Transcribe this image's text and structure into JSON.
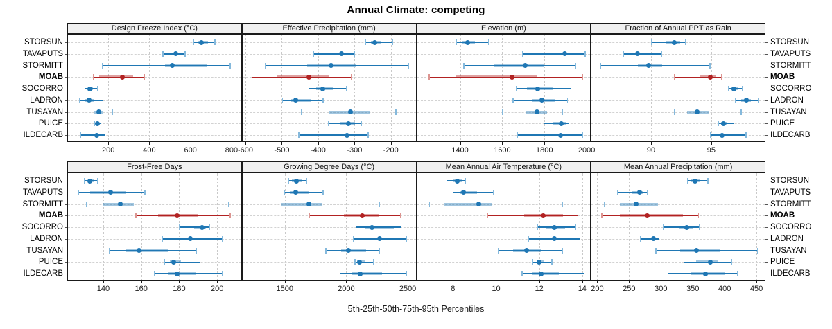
{
  "title": "Annual Climate: competing",
  "axis_caption": "5th-25th-50th-75th-95th Percentiles",
  "sites": [
    "STORSUN",
    "TAVAPUTS",
    "STORMITT",
    "MOAB",
    "SOCORRO",
    "LADRON",
    "TUSAYAN",
    "PUICE",
    "ILDECARB"
  ],
  "highlight_site": "MOAB",
  "colors": {
    "series": "#1f77b4",
    "series_cap": "#85b9dc",
    "highlight": "#b22222",
    "highlight_cap": "#dc9490",
    "strip_bg": "#f0f0f0",
    "panel_border": "#1a1a1a",
    "grid": "#c9c9c9"
  },
  "chart_data": [
    {
      "type": "dotplot-interval",
      "title": "Design Freeze Index (°C)",
      "percentiles": [
        5,
        25,
        50,
        75,
        95
      ],
      "xlim": [
        0,
        850
      ],
      "ticks": [
        200,
        400,
        600,
        800
      ],
      "series": {
        "STORSUN": [
          615,
          635,
          655,
          685,
          720
        ],
        "TAVAPUTS": [
          465,
          505,
          530,
          550,
          575
        ],
        "STORMITT": [
          170,
          475,
          510,
          680,
          795
        ],
        "MOAB": [
          125,
          155,
          270,
          320,
          375
        ],
        "SOCORRO": [
          85,
          100,
          110,
          125,
          150
        ],
        "LADRON": [
          60,
          85,
          105,
          130,
          175
        ],
        "TUSAYAN": [
          105,
          130,
          155,
          175,
          220
        ],
        "PUICE": [
          130,
          140,
          148,
          156,
          165
        ],
        "ILDECARB": [
          65,
          110,
          143,
          160,
          185
        ]
      }
    },
    {
      "type": "dotplot-interval",
      "title": "Effective Precipitation (mm)",
      "percentiles": [
        5,
        25,
        50,
        75,
        95
      ],
      "xlim": [
        -610,
        -130
      ],
      "ticks": [
        -600,
        -500,
        -400,
        -300,
        -200
      ],
      "series": {
        "STORSUN": [
          -270,
          -255,
          -244,
          -229,
          -195
        ],
        "TAVAPUTS": [
          -413,
          -371,
          -336,
          -318,
          -300
        ],
        "STORMITT": [
          -545,
          -430,
          -364,
          -295,
          -151
        ],
        "MOAB": [
          -582,
          -513,
          -426,
          -370,
          -308
        ],
        "SOCORRO": [
          -426,
          -405,
          -388,
          -360,
          -321
        ],
        "LADRON": [
          -498,
          -476,
          -461,
          -421,
          -386
        ],
        "TUSAYAN": [
          -446,
          -371,
          -312,
          -259,
          -186
        ],
        "PUICE": [
          -372,
          -341,
          -316,
          -299,
          -281
        ],
        "ILDECARB": [
          -454,
          -386,
          -321,
          -290,
          -262
        ]
      }
    },
    {
      "type": "dotplot-interval",
      "title": "Elevation (m)",
      "percentiles": [
        5,
        25,
        50,
        75,
        95
      ],
      "xlim": [
        1193,
        2020
      ],
      "ticks": [
        1400,
        1600,
        1800,
        2000
      ],
      "series": {
        "STORSUN": [
          1383,
          1410,
          1437,
          1470,
          1537
        ],
        "TAVAPUTS": [
          1697,
          1790,
          1897,
          1940,
          1993
        ],
        "STORMITT": [
          1417,
          1563,
          1710,
          1800,
          1950
        ],
        "MOAB": [
          1253,
          1380,
          1647,
          1767,
          1980
        ],
        "SOCORRO": [
          1667,
          1717,
          1767,
          1840,
          1927
        ],
        "LADRON": [
          1650,
          1740,
          1787,
          1850,
          1910
        ],
        "TUSAYAN": [
          1600,
          1713,
          1763,
          1813,
          1887
        ],
        "PUICE": [
          1797,
          1840,
          1880,
          1900,
          1917
        ],
        "ILDECARB": [
          1670,
          1770,
          1877,
          1920,
          1983
        ]
      }
    },
    {
      "type": "dotplot-interval",
      "title": "Fraction of Annual PPT as Rain",
      "percentiles": [
        5,
        25,
        50,
        75,
        95
      ],
      "xlim": [
        85,
        99.5
      ],
      "ticks": [
        90,
        95
      ],
      "series": {
        "STORSUN": [
          90.0,
          91.2,
          91.9,
          92.4,
          92.9
        ],
        "TAVAPUTS": [
          87.7,
          88.4,
          88.9,
          89.5,
          90.9
        ],
        "STORMITT": [
          85.8,
          88.9,
          89.8,
          90.9,
          94.9
        ],
        "MOAB": [
          91.9,
          94.0,
          94.9,
          95.4,
          95.9
        ],
        "SOCORRO": [
          96.4,
          96.7,
          96.9,
          97.2,
          97.6
        ],
        "LADRON": [
          97.0,
          97.5,
          97.9,
          98.3,
          98.9
        ],
        "TUSAYAN": [
          91.9,
          93.0,
          93.8,
          94.8,
          97.5
        ],
        "PUICE": [
          95.6,
          95.8,
          96.0,
          96.3,
          96.9
        ],
        "ILDECARB": [
          94.9,
          95.5,
          95.9,
          96.5,
          97.9
        ]
      }
    },
    {
      "type": "dotplot-interval",
      "title": "Frost-Free Days",
      "percentiles": [
        5,
        25,
        50,
        75,
        95
      ],
      "xlim": [
        121,
        213
      ],
      "ticks": [
        140,
        160,
        180,
        200
      ],
      "series": {
        "STORSUN": [
          130,
          132,
          133,
          135,
          137
        ],
        "TAVAPUTS": [
          127,
          133,
          144,
          152,
          162
        ],
        "STORMITT": [
          131,
          140,
          149,
          156,
          206
        ],
        "MOAB": [
          157,
          169,
          179,
          190,
          207
        ],
        "SOCORRO": [
          180,
          188,
          192,
          194,
          196
        ],
        "LADRON": [
          171,
          181,
          186,
          193,
          203
        ],
        "TUSAYAN": [
          143,
          152,
          159,
          174,
          189
        ],
        "PUICE": [
          172,
          175,
          177,
          181,
          191
        ],
        "ILDECARB": [
          167,
          174,
          179,
          189,
          203
        ]
      }
    },
    {
      "type": "dotplot-interval",
      "title": "Growing Degree Days (°C)",
      "percentiles": [
        5,
        25,
        50,
        75,
        95
      ],
      "xlim": [
        1150,
        2570
      ],
      "ticks": [
        1500,
        2000,
        2500
      ],
      "series": {
        "STORSUN": [
          1528,
          1560,
          1597,
          1640,
          1676
        ],
        "TAVAPUTS": [
          1494,
          1540,
          1591,
          1700,
          1813
        ],
        "STORMITT": [
          1233,
          1470,
          1693,
          1800,
          2273
        ],
        "MOAB": [
          1699,
          1980,
          2131,
          2270,
          2443
        ],
        "SOCORRO": [
          2079,
          2150,
          2210,
          2385,
          2448
        ],
        "LADRON": [
          2057,
          2180,
          2270,
          2380,
          2489
        ],
        "TUSAYAN": [
          1833,
          1960,
          2017,
          2160,
          2270
        ],
        "PUICE": [
          2069,
          2090,
          2110,
          2150,
          2224
        ],
        "ILDECARB": [
          1948,
          2040,
          2115,
          2290,
          2489
        ]
      }
    },
    {
      "type": "dotplot-interval",
      "title": "Mean Annual Air Temperature (°C)",
      "percentiles": [
        5,
        25,
        50,
        75,
        95
      ],
      "xlim": [
        6.3,
        14.4
      ],
      "ticks": [
        8,
        10,
        12,
        14
      ],
      "series": {
        "STORSUN": [
          7.7,
          8.0,
          8.2,
          8.4,
          8.6
        ],
        "TAVAPUTS": [
          8.0,
          8.3,
          8.5,
          9.1,
          9.9
        ],
        "STORMITT": [
          6.9,
          7.6,
          9.2,
          9.8,
          13.1
        ],
        "MOAB": [
          9.6,
          11.3,
          12.2,
          13.1,
          13.8
        ],
        "SOCORRO": [
          11.9,
          12.3,
          12.7,
          13.2,
          13.7
        ],
        "LADRON": [
          11.5,
          12.1,
          12.7,
          13.3,
          13.9
        ],
        "TUSAYAN": [
          10.1,
          10.8,
          11.4,
          12.1,
          13.1
        ],
        "PUICE": [
          11.7,
          11.9,
          12.0,
          12.2,
          12.6
        ],
        "ILDECARB": [
          11.2,
          11.7,
          12.1,
          12.9,
          14.1
        ]
      }
    },
    {
      "type": "dotplot-interval",
      "title": "Mean Annual Precipitation (mm)",
      "percentiles": [
        5,
        25,
        50,
        75,
        95
      ],
      "xlim": [
        190,
        464
      ],
      "ticks": [
        200,
        250,
        300,
        350,
        400,
        450
      ],
      "series": {
        "STORSUN": [
          342,
          347,
          353,
          362,
          374
        ],
        "TAVAPUTS": [
          232,
          255,
          267,
          272,
          279
        ],
        "STORMITT": [
          211,
          235,
          261,
          295,
          407
        ],
        "MOAB": [
          207,
          235,
          278,
          335,
          359
        ],
        "SOCORRO": [
          304,
          329,
          341,
          351,
          361
        ],
        "LADRON": [
          268,
          280,
          288,
          293,
          297
        ],
        "TUSAYAN": [
          292,
          330,
          356,
          392,
          452
        ],
        "PUICE": [
          336,
          355,
          378,
          390,
          411
        ],
        "ILDECARB": [
          311,
          348,
          370,
          400,
          421
        ]
      }
    }
  ]
}
